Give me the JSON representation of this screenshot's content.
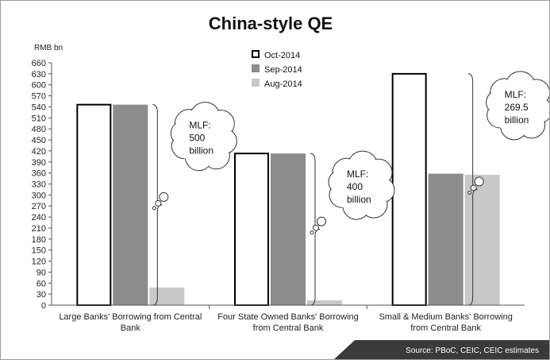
{
  "chart_data": {
    "type": "bar",
    "title": "China-style QE",
    "unit_label": "RMB bn",
    "categories": [
      [
        "Large Banks' Borrowing from Central",
        "Bank"
      ],
      [
        "Four State Owned Banks' Borrowing",
        "from Central Bank"
      ],
      [
        "Small & Medium Banks' Borrowing",
        "from Central Bank"
      ]
    ],
    "series": [
      {
        "name": "Oct-2014",
        "values": [
          546,
          413,
          630
        ],
        "color": "#ffffff",
        "stroke": "#000000"
      },
      {
        "name": "Sep-2014",
        "values": [
          546,
          413,
          358
        ],
        "color": "#8c8c8c",
        "stroke": "#8c8c8c"
      },
      {
        "name": "Aug-2014",
        "values": [
          48,
          13,
          355
        ],
        "color": "#c8c8c8",
        "stroke": "#c8c8c8"
      }
    ],
    "ylim": [
      0,
      660
    ],
    "ytick_step": 30,
    "legend_position": "top-center",
    "annotations": [
      {
        "category_index": 0,
        "lines": [
          "MLF:",
          "500",
          "billion"
        ]
      },
      {
        "category_index": 1,
        "lines": [
          "MLF:",
          "400",
          "billion"
        ]
      },
      {
        "category_index": 2,
        "lines": [
          "MLF:",
          "269.5",
          "billion"
        ]
      }
    ],
    "source": "Source: PBoC, CEIC, CEIC estimates"
  }
}
